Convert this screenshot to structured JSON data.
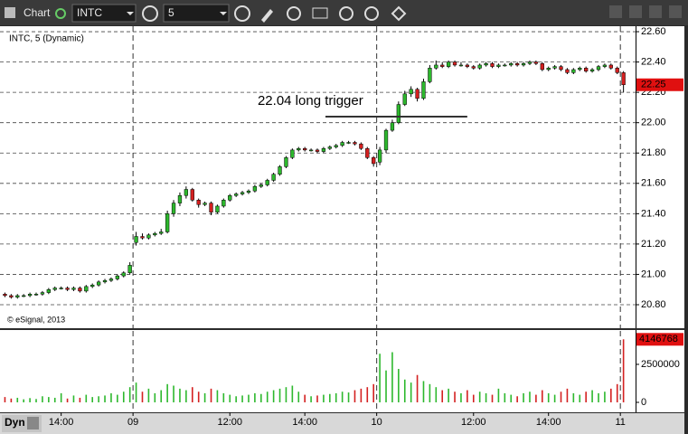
{
  "toolbar": {
    "app": "Chart",
    "symbol": "INTC",
    "interval": "5"
  },
  "footer": {
    "mode": "Dyn"
  },
  "chart_data": {
    "type": "candlestick",
    "subtitle": "INTC, 5 (Dynamic)",
    "copyright": "© eSignal, 2013",
    "annotation": {
      "text": "22.04 long trigger",
      "level": 22.04,
      "x_start": 51.3,
      "x_end": 74
    },
    "up_color": "#2db82d",
    "down_color": "#d42020",
    "open": [
      20.87,
      20.86,
      20.85,
      20.86,
      20.86,
      20.87,
      20.87,
      20.88,
      20.9,
      20.91,
      20.91,
      20.9,
      20.91,
      20.89,
      20.92,
      20.93,
      20.95,
      20.96,
      20.97,
      20.99,
      21.01,
      21.21,
      21.25,
      21.24,
      21.26,
      21.27,
      21.28,
      21.4,
      21.47,
      21.52,
      21.56,
      21.49,
      21.46,
      21.47,
      21.41,
      21.45,
      21.49,
      21.52,
      21.53,
      21.54,
      21.55,
      21.58,
      21.59,
      21.62,
      21.66,
      21.71,
      21.77,
      21.82,
      21.83,
      21.82,
      21.82,
      21.81,
      21.83,
      21.84,
      21.85,
      21.87,
      21.87,
      21.86,
      21.83,
      21.77,
      21.74,
      21.82,
      21.95,
      22.0,
      22.12,
      22.19,
      22.22,
      22.16,
      22.27,
      22.36,
      22.38,
      22.37,
      22.4,
      22.38,
      22.38,
      22.37,
      22.36,
      22.38,
      22.39,
      22.37,
      22.38,
      22.38,
      22.39,
      22.38,
      22.39,
      22.4,
      22.39,
      22.35,
      22.36,
      22.37,
      22.35,
      22.33,
      22.35,
      22.36,
      22.34,
      22.35,
      22.37,
      22.38,
      22.36,
      22.33
    ],
    "high": [
      20.88,
      20.87,
      20.87,
      20.87,
      20.88,
      20.88,
      20.89,
      20.91,
      20.92,
      20.92,
      20.92,
      20.92,
      20.92,
      20.93,
      20.94,
      20.96,
      20.97,
      20.98,
      21.0,
      21.02,
      21.08,
      21.28,
      21.27,
      21.27,
      21.28,
      21.3,
      21.42,
      21.49,
      21.54,
      21.58,
      21.57,
      21.5,
      21.48,
      21.48,
      21.46,
      21.5,
      21.53,
      21.54,
      21.55,
      21.56,
      21.59,
      21.6,
      21.63,
      21.67,
      21.72,
      21.78,
      21.83,
      21.84,
      21.84,
      21.83,
      21.83,
      21.84,
      21.85,
      21.86,
      21.88,
      21.88,
      21.88,
      21.87,
      21.84,
      21.78,
      21.84,
      21.96,
      22.02,
      22.14,
      22.21,
      22.24,
      22.23,
      22.29,
      22.38,
      22.41,
      22.4,
      22.41,
      22.41,
      22.4,
      22.39,
      22.38,
      22.39,
      22.4,
      22.4,
      22.39,
      22.39,
      22.4,
      22.4,
      22.4,
      22.41,
      22.41,
      22.4,
      22.37,
      22.38,
      22.38,
      22.36,
      22.36,
      22.37,
      22.37,
      22.36,
      22.38,
      22.39,
      22.39,
      22.37,
      22.34
    ],
    "low": [
      20.85,
      20.84,
      20.84,
      20.85,
      20.85,
      20.86,
      20.86,
      20.87,
      20.89,
      20.9,
      20.89,
      20.89,
      20.88,
      20.88,
      20.91,
      20.92,
      20.94,
      20.95,
      20.96,
      20.98,
      21.0,
      21.19,
      21.23,
      21.23,
      21.25,
      21.26,
      21.27,
      21.38,
      21.45,
      21.5,
      21.48,
      21.44,
      21.45,
      21.39,
      21.4,
      21.44,
      21.48,
      21.51,
      21.52,
      21.53,
      21.54,
      21.57,
      21.58,
      21.61,
      21.65,
      21.7,
      21.76,
      21.81,
      21.81,
      21.81,
      21.8,
      21.8,
      21.82,
      21.83,
      21.84,
      21.86,
      21.85,
      21.82,
      21.76,
      21.71,
      21.72,
      21.8,
      21.94,
      21.99,
      22.11,
      22.17,
      22.14,
      22.15,
      22.26,
      22.35,
      22.36,
      22.36,
      22.37,
      22.37,
      22.36,
      22.35,
      22.35,
      22.37,
      22.36,
      22.36,
      22.37,
      22.37,
      22.37,
      22.37,
      22.38,
      22.38,
      22.34,
      22.34,
      22.35,
      22.34,
      22.32,
      22.32,
      22.34,
      22.33,
      22.33,
      22.34,
      22.36,
      22.35,
      22.32,
      22.2
    ],
    "close": [
      20.86,
      20.85,
      20.86,
      20.86,
      20.87,
      20.87,
      20.88,
      20.9,
      20.91,
      20.91,
      20.9,
      20.91,
      20.89,
      20.92,
      20.93,
      20.95,
      20.96,
      20.97,
      20.99,
      21.01,
      21.06,
      21.25,
      21.24,
      21.26,
      21.27,
      21.28,
      21.4,
      21.47,
      21.52,
      21.56,
      21.49,
      21.46,
      21.47,
      21.41,
      21.45,
      21.49,
      21.52,
      21.53,
      21.54,
      21.55,
      21.58,
      21.59,
      21.62,
      21.66,
      21.71,
      21.77,
      21.82,
      21.83,
      21.82,
      21.82,
      21.81,
      21.83,
      21.84,
      21.85,
      21.87,
      21.87,
      21.86,
      21.83,
      21.77,
      21.73,
      21.82,
      21.95,
      22.0,
      22.12,
      22.19,
      22.22,
      22.16,
      22.27,
      22.36,
      22.38,
      22.37,
      22.4,
      22.38,
      22.38,
      22.37,
      22.36,
      22.38,
      22.39,
      22.37,
      22.38,
      22.38,
      22.39,
      22.38,
      22.39,
      22.4,
      22.39,
      22.35,
      22.36,
      22.37,
      22.35,
      22.33,
      22.35,
      22.36,
      22.34,
      22.35,
      22.37,
      22.38,
      22.36,
      22.33,
      22.25
    ],
    "volume": [
      350000,
      250000,
      300000,
      200000,
      280000,
      220000,
      400000,
      350000,
      300000,
      600000,
      250000,
      450000,
      300000,
      500000,
      350000,
      400000,
      450000,
      600000,
      500000,
      700000,
      1000000,
      1300000,
      700000,
      900000,
      600000,
      800000,
      1200000,
      1100000,
      900000,
      800000,
      1000000,
      700000,
      600000,
      900000,
      800000,
      600000,
      500000,
      400000,
      450000,
      500000,
      600000,
      550000,
      700000,
      800000,
      900000,
      1000000,
      1100000,
      700000,
      500000,
      400000,
      450000,
      500000,
      550000,
      600000,
      700000,
      650000,
      800000,
      900000,
      1000000,
      1200000,
      3200000,
      2100000,
      3300000,
      2200000,
      1500000,
      1300000,
      1800000,
      1400000,
      1200000,
      1000000,
      800000,
      900000,
      700000,
      600000,
      800000,
      500000,
      700000,
      600000,
      500000,
      900000,
      600000,
      500000,
      400000,
      600000,
      700000,
      500000,
      800000,
      600000,
      500000,
      700000,
      900000,
      600000,
      500000,
      700000,
      800000,
      600000,
      700000,
      900000,
      1200000,
      4146768
    ],
    "ylim": [
      20.645,
      22.636
    ],
    "yticks": [
      {
        "value": 20.8,
        "label": "20.80"
      },
      {
        "value": 21,
        "label": "21.00"
      },
      {
        "value": 21.2,
        "label": "21.20"
      },
      {
        "value": 21.4,
        "label": "21.40"
      },
      {
        "value": 21.6,
        "label": "21.60"
      },
      {
        "value": 21.8,
        "label": "21.80"
      },
      {
        "value": 22,
        "label": "22.00"
      },
      {
        "value": 22.2,
        "label": "22.20"
      },
      {
        "value": 22.4,
        "label": "22.40"
      },
      {
        "value": 22.6,
        "label": "22.60"
      }
    ],
    "grid": true,
    "volume_ylim": [
      -655000,
      4700000
    ],
    "volume_yticks": [
      0,
      2500000
    ],
    "xlim": [
      -0.5,
      100.5
    ],
    "xticks": [
      {
        "value": 9,
        "label": "14:00"
      },
      {
        "value": 20.5,
        "label": "09"
      },
      {
        "value": 36,
        "label": "12:00"
      },
      {
        "value": 48,
        "label": "14:00"
      },
      {
        "value": 59.5,
        "label": "10"
      },
      {
        "value": 75,
        "label": "12:00"
      },
      {
        "value": 87,
        "label": "14:00"
      },
      {
        "value": 98.5,
        "label": "11"
      }
    ]
  }
}
